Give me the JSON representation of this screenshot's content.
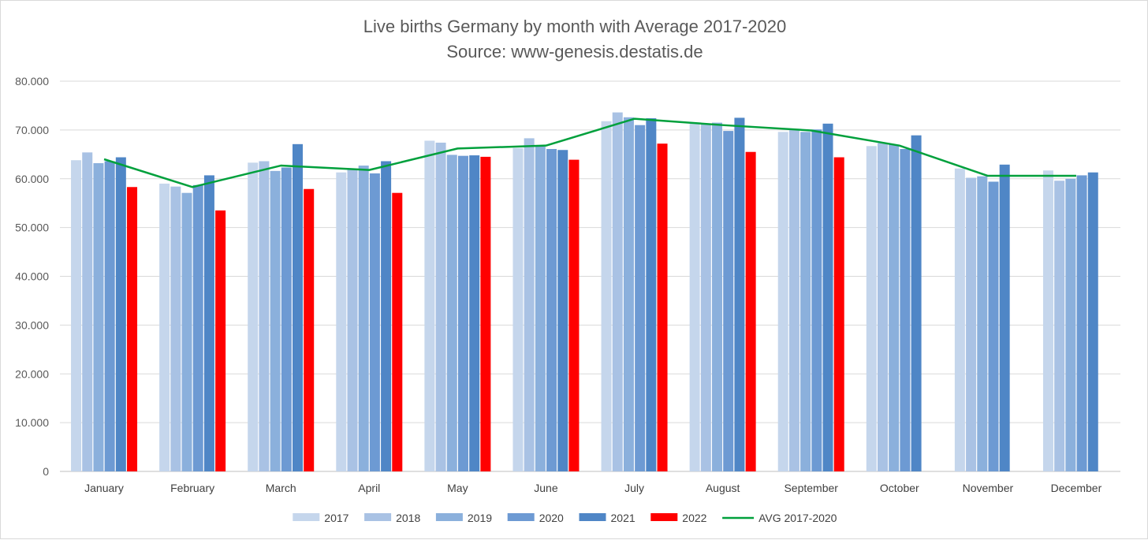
{
  "chart_data": {
    "type": "bar",
    "title": "Live births Germany by month with Average 2017-2020",
    "subtitle": "Source: www-genesis.destatis.de",
    "categories": [
      "January",
      "February",
      "March",
      "April",
      "May",
      "June",
      "July",
      "August",
      "September",
      "October",
      "November",
      "December"
    ],
    "ylim": [
      0,
      80000
    ],
    "yticks": [
      0,
      10000,
      20000,
      30000,
      40000,
      50000,
      60000,
      70000,
      80000
    ],
    "ytick_labels": [
      "0",
      "10.000",
      "20.000",
      "30.000",
      "40.000",
      "50.000",
      "60.000",
      "70.000",
      "80.000"
    ],
    "grid": true,
    "legend_position": "bottom",
    "series": [
      {
        "name": "2017",
        "type": "bar",
        "color": "#c5d6ec",
        "values": [
          63800,
          59000,
          63300,
          61300,
          67800,
          66300,
          71800,
          71300,
          69600,
          66700,
          62100,
          61700
        ]
      },
      {
        "name": "2018",
        "type": "bar",
        "color": "#a9c2e4",
        "values": [
          65400,
          58400,
          63600,
          61900,
          67400,
          68300,
          73600,
          71300,
          70200,
          67300,
          60200,
          59600
        ]
      },
      {
        "name": "2019",
        "type": "bar",
        "color": "#8bb0dc",
        "values": [
          63200,
          57100,
          61600,
          62700,
          64900,
          66600,
          72600,
          71500,
          69600,
          67000,
          60500,
          60000
        ]
      },
      {
        "name": "2020",
        "type": "bar",
        "color": "#6d9ad3",
        "values": [
          63600,
          58700,
          62300,
          61100,
          64700,
          66100,
          71000,
          69800,
          70100,
          66100,
          59400,
          60700
        ]
      },
      {
        "name": "2021",
        "type": "bar",
        "color": "#4f86c6",
        "values": [
          64400,
          60700,
          67100,
          63600,
          64800,
          65900,
          72400,
          72500,
          71300,
          68900,
          62900,
          61300
        ]
      },
      {
        "name": "2022",
        "type": "bar",
        "color": "#ff0000",
        "values": [
          58300,
          53500,
          57900,
          57100,
          64500,
          63900,
          67200,
          65500,
          64400,
          null,
          null,
          null
        ]
      },
      {
        "name": "AVG 2017-2020",
        "type": "line",
        "color": "#00a03c",
        "values": [
          64000,
          58300,
          62700,
          61800,
          66200,
          66800,
          72300,
          71000,
          69900,
          66800,
          60600,
          60600
        ]
      }
    ]
  }
}
